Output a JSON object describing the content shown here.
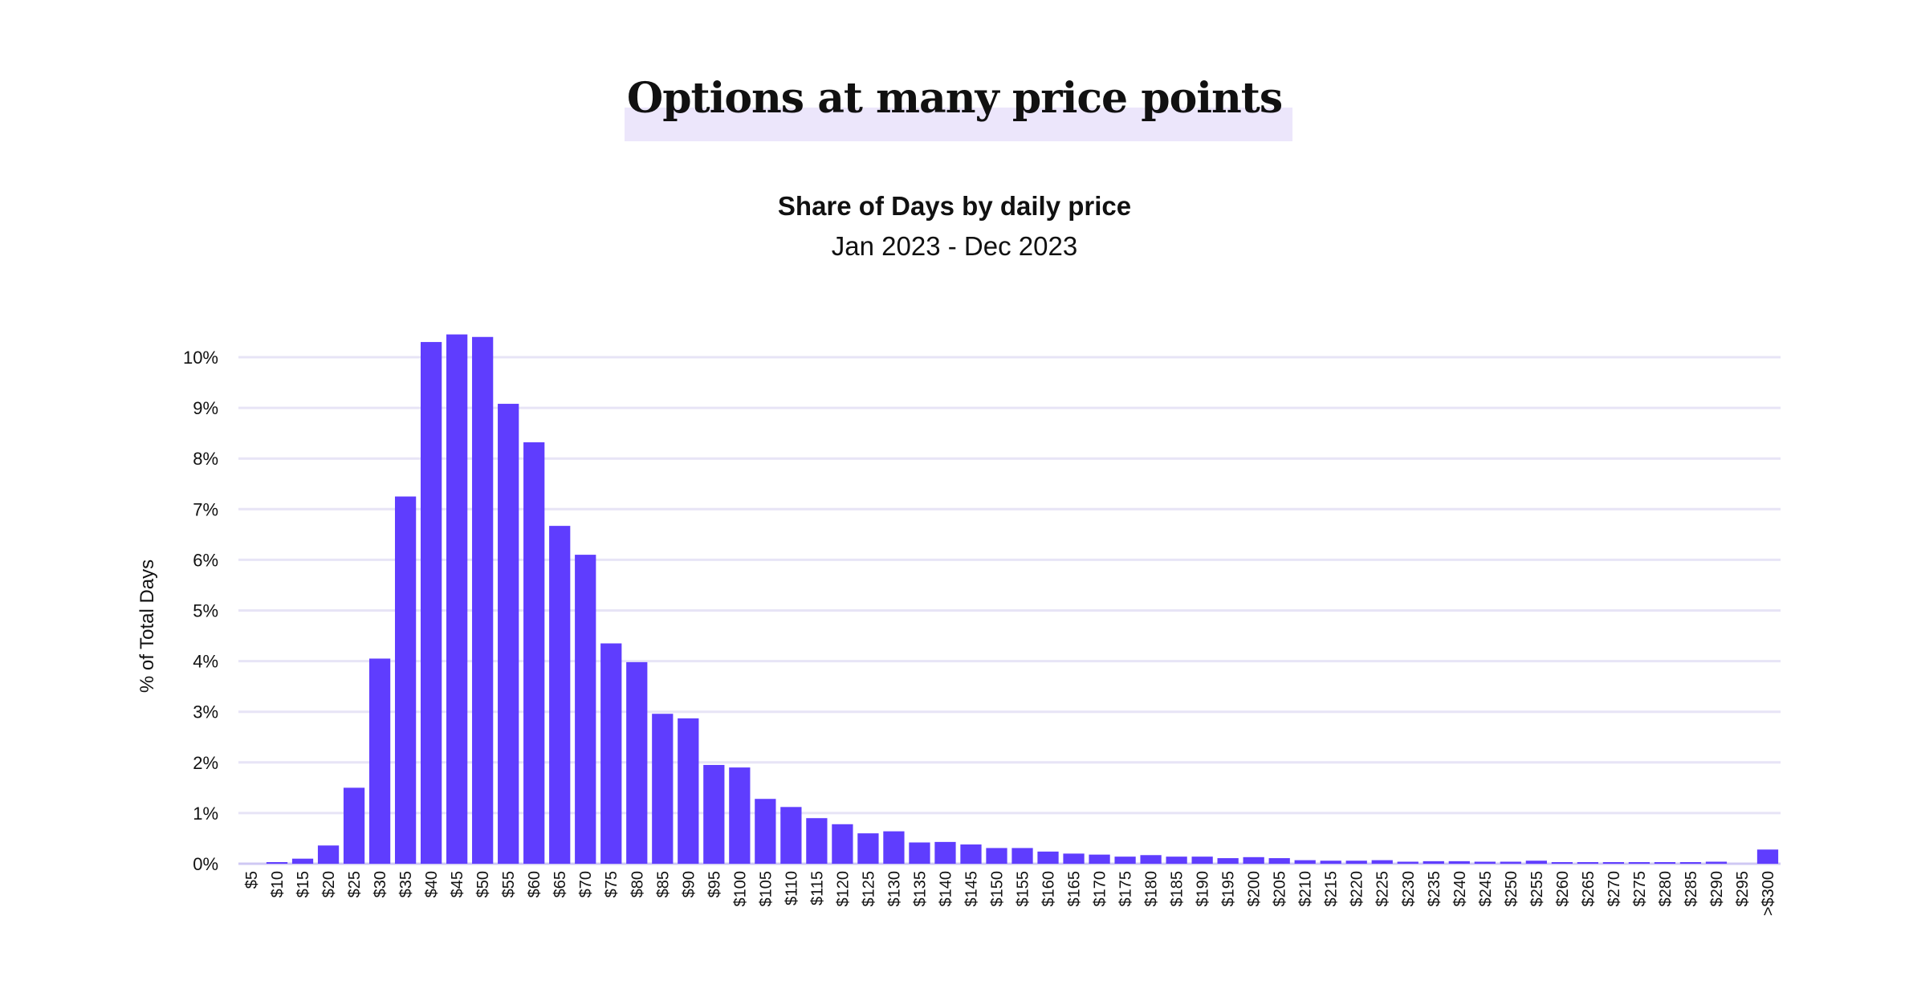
{
  "headline": "Options at many price points",
  "colors": {
    "bar": "#5f3dfe",
    "grid": "#e7e4f6",
    "highlight": "#ece6fb",
    "text": "#111111"
  },
  "chart_data": {
    "type": "bar",
    "title": "Share of Days by daily price",
    "subtitle": "Jan 2023 - Dec 2023",
    "xlabel": "",
    "ylabel": "% of Total Days",
    "ylim": [
      0,
      10
    ],
    "y_ticks": [
      "0%",
      "1%",
      "2%",
      "3%",
      "4%",
      "5%",
      "6%",
      "7%",
      "8%",
      "9%",
      "10%"
    ],
    "grid": true,
    "legend": "none",
    "categories": [
      "$5",
      "$10",
      "$15",
      "$20",
      "$25",
      "$30",
      "$35",
      "$40",
      "$45",
      "$50",
      "$55",
      "$60",
      "$65",
      "$70",
      "$75",
      "$80",
      "$85",
      "$90",
      "$95",
      "$100",
      "$105",
      "$110",
      "$115",
      "$120",
      "$125",
      "$130",
      "$135",
      "$140",
      "$145",
      "$150",
      "$155",
      "$160",
      "$165",
      "$170",
      "$175",
      "$180",
      "$185",
      "$190",
      "$195",
      "$200",
      "$205",
      "$210",
      "$215",
      "$220",
      "$225",
      "$230",
      "$235",
      "$240",
      "$245",
      "$250",
      "$255",
      "$260",
      "$265",
      "$270",
      "$275",
      "$280",
      "$285",
      "$290",
      "$295",
      ">$300"
    ],
    "values": [
      0,
      0.02,
      0.1,
      0.36,
      1.5,
      4.05,
      7.25,
      10.3,
      10.45,
      10.4,
      9.08,
      8.32,
      6.67,
      6.1,
      4.35,
      3.98,
      2.96,
      2.87,
      1.95,
      1.9,
      1.28,
      1.12,
      0.9,
      0.78,
      0.6,
      0.64,
      0.42,
      0.43,
      0.38,
      0.31,
      0.31,
      0.24,
      0.2,
      0.18,
      0.14,
      0.17,
      0.14,
      0.14,
      0.11,
      0.13,
      0.11,
      0.07,
      0.06,
      0.06,
      0.07,
      0.04,
      0.05,
      0.05,
      0.04,
      0.04,
      0.06,
      0.02,
      0.02,
      0.03,
      0.03,
      0.03,
      0.03,
      0.04,
      0,
      0.28
    ]
  }
}
